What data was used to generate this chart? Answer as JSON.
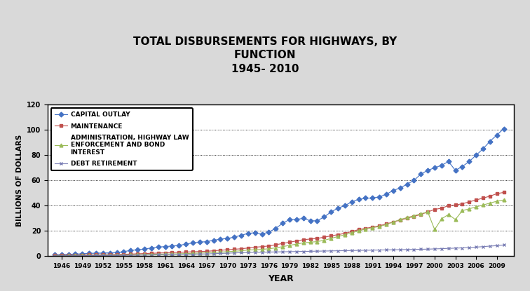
{
  "title_line1": "TOTAL DISBURSEMENTS FOR HIGHWAYS, BY",
  "title_line2": "FUNCTION",
  "title_line3": "1945- 2010",
  "xlabel": "YEAR",
  "ylabel": "BILLIONS OF DOLLARS",
  "ylim": [
    0,
    120
  ],
  "yticks": [
    0,
    20,
    40,
    60,
    80,
    100,
    120
  ],
  "xticks": [
    1946,
    1949,
    1952,
    1955,
    1958,
    1961,
    1964,
    1967,
    1970,
    1973,
    1976,
    1979,
    1982,
    1985,
    1988,
    1991,
    1994,
    1997,
    2000,
    2003,
    2006,
    2009
  ],
  "years": [
    1945,
    1946,
    1947,
    1948,
    1949,
    1950,
    1951,
    1952,
    1953,
    1954,
    1955,
    1956,
    1957,
    1958,
    1959,
    1960,
    1961,
    1962,
    1963,
    1964,
    1965,
    1966,
    1967,
    1968,
    1969,
    1970,
    1971,
    1972,
    1973,
    1974,
    1975,
    1976,
    1977,
    1978,
    1979,
    1980,
    1981,
    1982,
    1983,
    1984,
    1985,
    1986,
    1987,
    1988,
    1989,
    1990,
    1991,
    1992,
    1993,
    1994,
    1995,
    1996,
    1997,
    1998,
    1999,
    2000,
    2001,
    2002,
    2003,
    2004,
    2005,
    2006,
    2007,
    2008,
    2009,
    2010
  ],
  "capital_outlay": [
    1.0,
    1.2,
    1.4,
    1.6,
    1.8,
    2.2,
    2.3,
    2.4,
    2.6,
    2.8,
    3.5,
    4.5,
    5.0,
    5.5,
    6.5,
    7.2,
    7.5,
    8.0,
    8.5,
    9.5,
    10.5,
    11.0,
    11.5,
    12.5,
    13.5,
    14.0,
    15.0,
    16.5,
    18.0,
    18.5,
    17.5,
    19.0,
    22.0,
    26.0,
    29.0,
    29.0,
    30.0,
    28.0,
    28.0,
    31.0,
    35.0,
    38.0,
    40.0,
    43.0,
    45.0,
    46.0,
    46.0,
    47.0,
    49.0,
    52.0,
    54.0,
    57.0,
    60.0,
    65.0,
    68.0,
    70.0,
    72.0,
    75.0,
    68.0,
    71.0,
    75.0,
    80.0,
    85.0,
    91.0,
    96.0,
    101.0
  ],
  "maintenance": [
    0.5,
    0.6,
    0.7,
    0.8,
    0.9,
    1.0,
    1.0,
    1.1,
    1.2,
    1.3,
    1.4,
    1.6,
    1.8,
    2.0,
    2.2,
    2.4,
    2.6,
    2.8,
    3.0,
    3.2,
    3.4,
    3.6,
    3.8,
    4.2,
    4.6,
    5.0,
    5.4,
    5.8,
    6.4,
    7.0,
    7.5,
    8.0,
    9.0,
    10.0,
    11.0,
    12.0,
    13.0,
    13.5,
    14.0,
    15.0,
    16.0,
    17.0,
    18.0,
    19.5,
    21.0,
    22.0,
    23.0,
    24.0,
    25.5,
    27.0,
    28.5,
    30.0,
    31.5,
    33.0,
    35.0,
    37.0,
    38.0,
    40.0,
    40.5,
    41.5,
    43.0,
    44.5,
    46.0,
    47.5,
    49.5,
    50.5
  ],
  "admin_highway": [
    0.3,
    0.35,
    0.4,
    0.45,
    0.5,
    0.55,
    0.6,
    0.65,
    0.7,
    0.75,
    0.85,
    1.0,
    1.1,
    1.2,
    1.4,
    1.5,
    1.6,
    1.7,
    1.8,
    2.0,
    2.2,
    2.4,
    2.6,
    2.9,
    3.2,
    3.5,
    3.8,
    4.2,
    4.8,
    5.0,
    5.3,
    5.8,
    6.5,
    7.5,
    8.5,
    9.5,
    10.5,
    11.0,
    11.5,
    12.5,
    14.0,
    15.5,
    17.0,
    18.5,
    20.0,
    21.5,
    22.5,
    23.5,
    25.0,
    27.0,
    29.0,
    30.5,
    32.0,
    33.5,
    35.0,
    21.0,
    29.5,
    33.0,
    29.0,
    36.0,
    37.5,
    39.0,
    40.5,
    42.0,
    43.5,
    44.5
  ],
  "debt_retirement": [
    0.1,
    0.15,
    0.2,
    0.25,
    0.3,
    0.35,
    0.4,
    0.4,
    0.45,
    0.5,
    0.55,
    0.6,
    0.7,
    0.8,
    0.9,
    1.0,
    1.1,
    1.2,
    1.3,
    1.4,
    1.5,
    1.6,
    1.7,
    1.9,
    2.1,
    2.3,
    2.5,
    2.7,
    2.9,
    3.0,
    3.1,
    3.2,
    3.3,
    3.4,
    3.5,
    3.6,
    3.7,
    3.8,
    3.9,
    4.0,
    4.1,
    4.2,
    4.3,
    4.4,
    4.5,
    4.6,
    4.7,
    4.8,
    4.9,
    5.0,
    5.1,
    5.2,
    5.3,
    5.4,
    5.5,
    5.7,
    5.9,
    6.1,
    6.3,
    6.5,
    6.8,
    7.1,
    7.5,
    7.9,
    8.3,
    8.8
  ],
  "colors": {
    "capital_outlay": "#4472C4",
    "maintenance": "#C0504D",
    "admin_highway": "#9BBB59",
    "debt_retirement": "#7B7FB5"
  },
  "legend_labels": [
    "CAPITAL OUTLAY",
    "MAINTENANCE",
    "ADMINISTRATION, HIGHWAY LAW\nENFORCEMENT AND BOND\nINTEREST",
    "DEBT RETIREMENT"
  ],
  "background_color": "#FFFFFF",
  "outer_bg": "#D9D9D9",
  "grid_color": "#000000"
}
